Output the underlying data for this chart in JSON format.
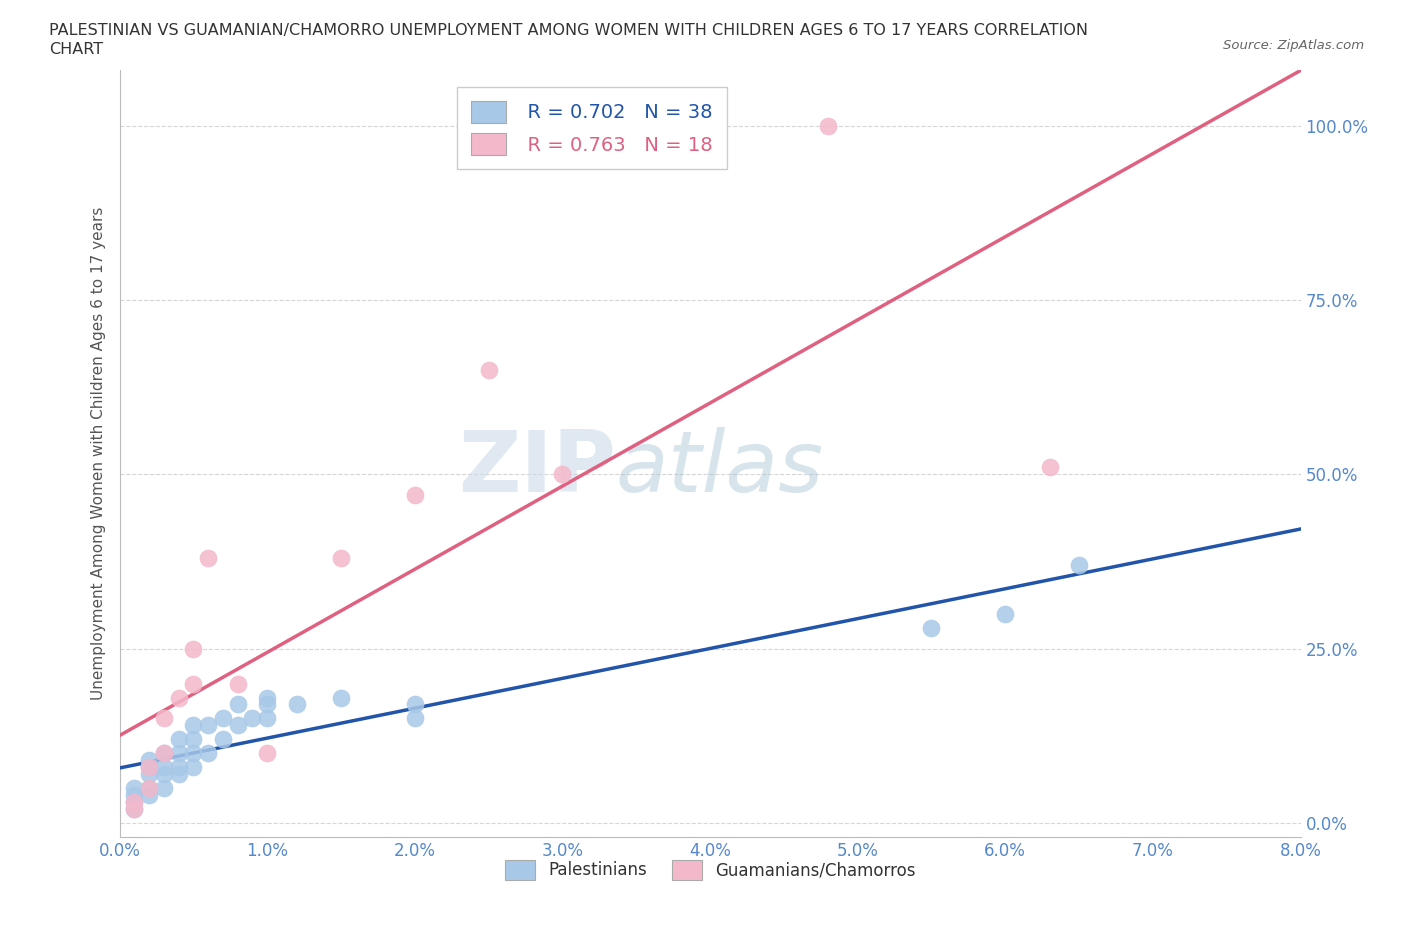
{
  "title": "PALESTINIAN VS GUAMANIAN/CHAMORRO UNEMPLOYMENT AMONG WOMEN WITH CHILDREN AGES 6 TO 17 YEARS CORRELATION\nCHART",
  "source": "Source: ZipAtlas.com",
  "ylabel": "Unemployment Among Women with Children Ages 6 to 17 years",
  "xlim": [
    0.0,
    0.08
  ],
  "ylim": [
    -0.02,
    1.08
  ],
  "pal_color": "#a8c8e8",
  "gua_color": "#f4b8cb",
  "pal_line_color": "#2255aa",
  "gua_line_color": "#e06080",
  "watermark_zip": "ZIP",
  "watermark_atlas": "atlas",
  "legend_R_pal": "R = 0.702",
  "legend_N_pal": "N = 38",
  "legend_R_gua": "R = 0.763",
  "legend_N_gua": "N = 18",
  "pal_x": [
    0.001,
    0.001,
    0.001,
    0.001,
    0.002,
    0.002,
    0.002,
    0.002,
    0.002,
    0.003,
    0.003,
    0.003,
    0.003,
    0.004,
    0.004,
    0.004,
    0.004,
    0.005,
    0.005,
    0.005,
    0.005,
    0.006,
    0.006,
    0.007,
    0.007,
    0.008,
    0.008,
    0.009,
    0.01,
    0.01,
    0.01,
    0.012,
    0.015,
    0.02,
    0.02,
    0.055,
    0.06,
    0.065
  ],
  "pal_y": [
    0.02,
    0.03,
    0.04,
    0.05,
    0.04,
    0.05,
    0.07,
    0.08,
    0.09,
    0.05,
    0.07,
    0.08,
    0.1,
    0.07,
    0.08,
    0.1,
    0.12,
    0.08,
    0.1,
    0.12,
    0.14,
    0.1,
    0.14,
    0.12,
    0.15,
    0.14,
    0.17,
    0.15,
    0.15,
    0.17,
    0.18,
    0.17,
    0.18,
    0.15,
    0.17,
    0.28,
    0.3,
    0.37
  ],
  "gua_x": [
    0.001,
    0.001,
    0.002,
    0.002,
    0.003,
    0.003,
    0.004,
    0.005,
    0.005,
    0.006,
    0.008,
    0.01,
    0.015,
    0.02,
    0.025,
    0.03,
    0.048,
    0.063
  ],
  "gua_y": [
    0.02,
    0.03,
    0.05,
    0.08,
    0.1,
    0.15,
    0.18,
    0.2,
    0.25,
    0.38,
    0.2,
    0.1,
    0.38,
    0.47,
    0.65,
    0.5,
    1.0,
    0.51
  ],
  "background_color": "#ffffff",
  "grid_color": "#cccccc",
  "tick_color": "#5588cc",
  "x_ticks": [
    0.0,
    0.01,
    0.02,
    0.03,
    0.04,
    0.05,
    0.06,
    0.07,
    0.08
  ],
  "x_tick_labels": [
    "0.0%",
    "1.0%",
    "2.0%",
    "3.0%",
    "4.0%",
    "5.0%",
    "6.0%",
    "7.0%",
    "8.0%"
  ],
  "y_ticks": [
    0.0,
    0.25,
    0.5,
    0.75,
    1.0
  ],
  "y_tick_labels": [
    "0.0%",
    "25.0%",
    "50.0%",
    "75.0%",
    "100.0%"
  ]
}
